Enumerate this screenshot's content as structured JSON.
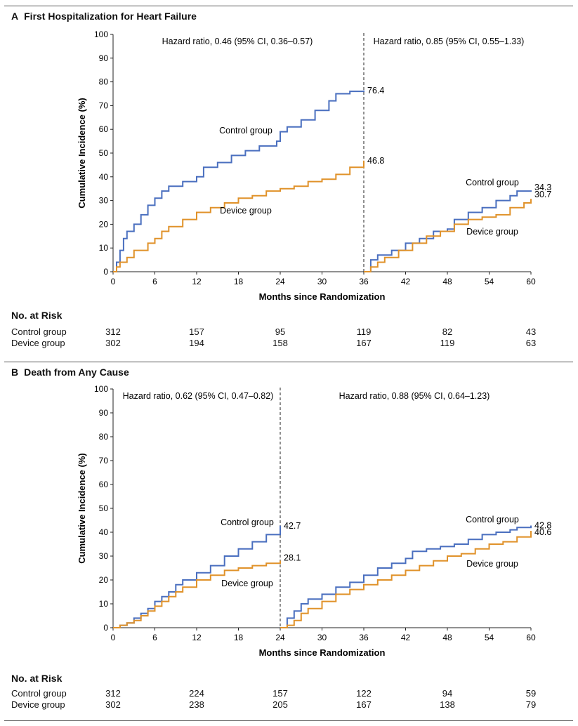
{
  "chart_data": [
    {
      "type": "line",
      "panel_letter": "A",
      "title": "First Hospitalization for Heart Failure",
      "xlabel": "Months since Randomization",
      "ylabel": "Cumulative Incidence (%)",
      "xlim": [
        0,
        60
      ],
      "ylim": [
        0,
        100
      ],
      "xticks": [
        0,
        6,
        12,
        18,
        24,
        30,
        36,
        42,
        48,
        54,
        60
      ],
      "yticks": [
        0,
        10,
        20,
        30,
        40,
        50,
        60,
        70,
        80,
        90,
        100
      ],
      "grid": false,
      "split_at": 36,
      "hazard_ratios": [
        "Hazard ratio, 0.46 (95% CI, 0.36–0.57)",
        "Hazard ratio, 0.85 (95% CI, 0.55–1.33)"
      ],
      "series": [
        {
          "name": "Control group",
          "color": "#4a6fbf",
          "segments": [
            [
              [
                0,
                0
              ],
              [
                0.5,
                4
              ],
              [
                1,
                9
              ],
              [
                1.5,
                14
              ],
              [
                2,
                17
              ],
              [
                3,
                20
              ],
              [
                4,
                24
              ],
              [
                5,
                28
              ],
              [
                6,
                31
              ],
              [
                7,
                34
              ],
              [
                8,
                36
              ],
              [
                10,
                38
              ],
              [
                12,
                40
              ],
              [
                13,
                44
              ],
              [
                15,
                46
              ],
              [
                17,
                49
              ],
              [
                19,
                51
              ],
              [
                21,
                53
              ],
              [
                23.5,
                55
              ],
              [
                24,
                59
              ],
              [
                25,
                61
              ],
              [
                27,
                64
              ],
              [
                29,
                68
              ],
              [
                31,
                72
              ],
              [
                32,
                75
              ],
              [
                34,
                76
              ],
              [
                36,
                76.4
              ]
            ],
            [
              [
                36,
                0
              ],
              [
                37,
                5
              ],
              [
                38,
                7
              ],
              [
                40,
                9
              ],
              [
                42,
                12
              ],
              [
                44,
                14
              ],
              [
                46,
                17
              ],
              [
                48,
                18
              ],
              [
                49,
                22
              ],
              [
                51,
                25
              ],
              [
                53,
                27
              ],
              [
                55,
                30
              ],
              [
                57,
                32
              ],
              [
                58,
                34
              ],
              [
                60,
                34.3
              ]
            ]
          ],
          "end_labels": [
            "76.4",
            "34.3"
          ]
        },
        {
          "name": "Device group",
          "color": "#e0922a",
          "segments": [
            [
              [
                0,
                0
              ],
              [
                0.5,
                2
              ],
              [
                1,
                4
              ],
              [
                2,
                6
              ],
              [
                3,
                9
              ],
              [
                5,
                12
              ],
              [
                6,
                14
              ],
              [
                7,
                17
              ],
              [
                8,
                19
              ],
              [
                10,
                22
              ],
              [
                12,
                25
              ],
              [
                14,
                27
              ],
              [
                16,
                29
              ],
              [
                18,
                31
              ],
              [
                20,
                32
              ],
              [
                22,
                34
              ],
              [
                24,
                35
              ],
              [
                26,
                36
              ],
              [
                28,
                38
              ],
              [
                30,
                39
              ],
              [
                32,
                41
              ],
              [
                34,
                44
              ],
              [
                36,
                46.8
              ]
            ],
            [
              [
                36,
                0
              ],
              [
                37,
                2
              ],
              [
                38,
                4
              ],
              [
                39,
                6
              ],
              [
                41,
                9
              ],
              [
                43,
                12
              ],
              [
                45,
                15
              ],
              [
                47,
                17
              ],
              [
                49,
                20
              ],
              [
                51,
                22
              ],
              [
                53,
                23
              ],
              [
                55,
                24
              ],
              [
                57,
                27
              ],
              [
                59,
                29
              ],
              [
                60,
                30.7
              ]
            ]
          ],
          "end_labels": [
            "46.8",
            "30.7"
          ]
        }
      ],
      "annotations": [
        "Control group",
        "Device group",
        "Control group",
        "Device group"
      ],
      "risk_table": {
        "header": "No. at Risk",
        "times": [
          0,
          12,
          24,
          36,
          48,
          60
        ],
        "rows": [
          {
            "label": "Control group",
            "values": [
              "312",
              "157",
              "95",
              "119",
              "82",
              "43"
            ]
          },
          {
            "label": "Device group",
            "values": [
              "302",
              "194",
              "158",
              "167",
              "119",
              "63"
            ]
          }
        ]
      }
    },
    {
      "type": "line",
      "panel_letter": "B",
      "title": "Death from Any Cause",
      "xlabel": "Months since Randomization",
      "ylabel": "Cumulative Incidence (%)",
      "xlim": [
        0,
        60
      ],
      "ylim": [
        0,
        100
      ],
      "xticks": [
        0,
        6,
        12,
        18,
        24,
        30,
        36,
        42,
        48,
        54,
        60
      ],
      "yticks": [
        0,
        10,
        20,
        30,
        40,
        50,
        60,
        70,
        80,
        90,
        100
      ],
      "grid": false,
      "split_at": 24,
      "hazard_ratios": [
        "Hazard ratio, 0.62 (95% CI, 0.47–0.82)",
        "Hazard ratio, 0.88 (95% CI, 0.64–1.23)"
      ],
      "series": [
        {
          "name": "Control group",
          "color": "#4a6fbf",
          "segments": [
            [
              [
                0,
                0
              ],
              [
                1,
                1
              ],
              [
                2,
                2
              ],
              [
                3,
                4
              ],
              [
                4,
                6
              ],
              [
                5,
                8
              ],
              [
                6,
                11
              ],
              [
                7,
                13
              ],
              [
                8,
                15
              ],
              [
                9,
                18
              ],
              [
                10,
                20
              ],
              [
                12,
                23
              ],
              [
                14,
                26
              ],
              [
                16,
                30
              ],
              [
                18,
                33
              ],
              [
                20,
                36
              ],
              [
                22,
                39
              ],
              [
                24,
                42.7
              ]
            ],
            [
              [
                24,
                0
              ],
              [
                25,
                4
              ],
              [
                26,
                7
              ],
              [
                27,
                10
              ],
              [
                28,
                12
              ],
              [
                30,
                14
              ],
              [
                32,
                17
              ],
              [
                34,
                19
              ],
              [
                36,
                22
              ],
              [
                38,
                25
              ],
              [
                40,
                27
              ],
              [
                42,
                29
              ],
              [
                43,
                32
              ],
              [
                45,
                33
              ],
              [
                47,
                34
              ],
              [
                49,
                35
              ],
              [
                51,
                37
              ],
              [
                53,
                39
              ],
              [
                55,
                40
              ],
              [
                57,
                41
              ],
              [
                58,
                42
              ],
              [
                60,
                42.8
              ]
            ]
          ],
          "end_labels": [
            "42.7",
            "42.8"
          ]
        },
        {
          "name": "Device group",
          "color": "#e0922a",
          "segments": [
            [
              [
                0,
                0
              ],
              [
                1,
                1
              ],
              [
                2,
                2
              ],
              [
                3,
                3
              ],
              [
                4,
                5
              ],
              [
                5,
                7
              ],
              [
                6,
                9
              ],
              [
                7,
                11
              ],
              [
                8,
                13
              ],
              [
                9,
                15
              ],
              [
                10,
                17
              ],
              [
                12,
                20
              ],
              [
                14,
                22
              ],
              [
                16,
                24
              ],
              [
                18,
                25
              ],
              [
                20,
                26
              ],
              [
                22,
                27
              ],
              [
                24,
                28.1
              ]
            ],
            [
              [
                24,
                0
              ],
              [
                25,
                1
              ],
              [
                26,
                3
              ],
              [
                27,
                6
              ],
              [
                28,
                8
              ],
              [
                30,
                11
              ],
              [
                32,
                14
              ],
              [
                34,
                16
              ],
              [
                36,
                18
              ],
              [
                38,
                20
              ],
              [
                40,
                22
              ],
              [
                42,
                24
              ],
              [
                44,
                26
              ],
              [
                46,
                28
              ],
              [
                48,
                30
              ],
              [
                50,
                31
              ],
              [
                52,
                33
              ],
              [
                54,
                35
              ],
              [
                56,
                36
              ],
              [
                58,
                38
              ],
              [
                60,
                40.6
              ]
            ]
          ],
          "end_labels": [
            "28.1",
            "40.6"
          ]
        }
      ],
      "annotations": [
        "Control group",
        "Device group",
        "Control group",
        "Device group"
      ],
      "risk_table": {
        "header": "No. at Risk",
        "times": [
          0,
          12,
          24,
          36,
          48,
          60
        ],
        "rows": [
          {
            "label": "Control group",
            "values": [
              "312",
              "224",
              "157",
              "122",
              "94",
              "59"
            ]
          },
          {
            "label": "Device group",
            "values": [
              "302",
              "238",
              "205",
              "167",
              "138",
              "79"
            ]
          }
        ]
      }
    }
  ]
}
